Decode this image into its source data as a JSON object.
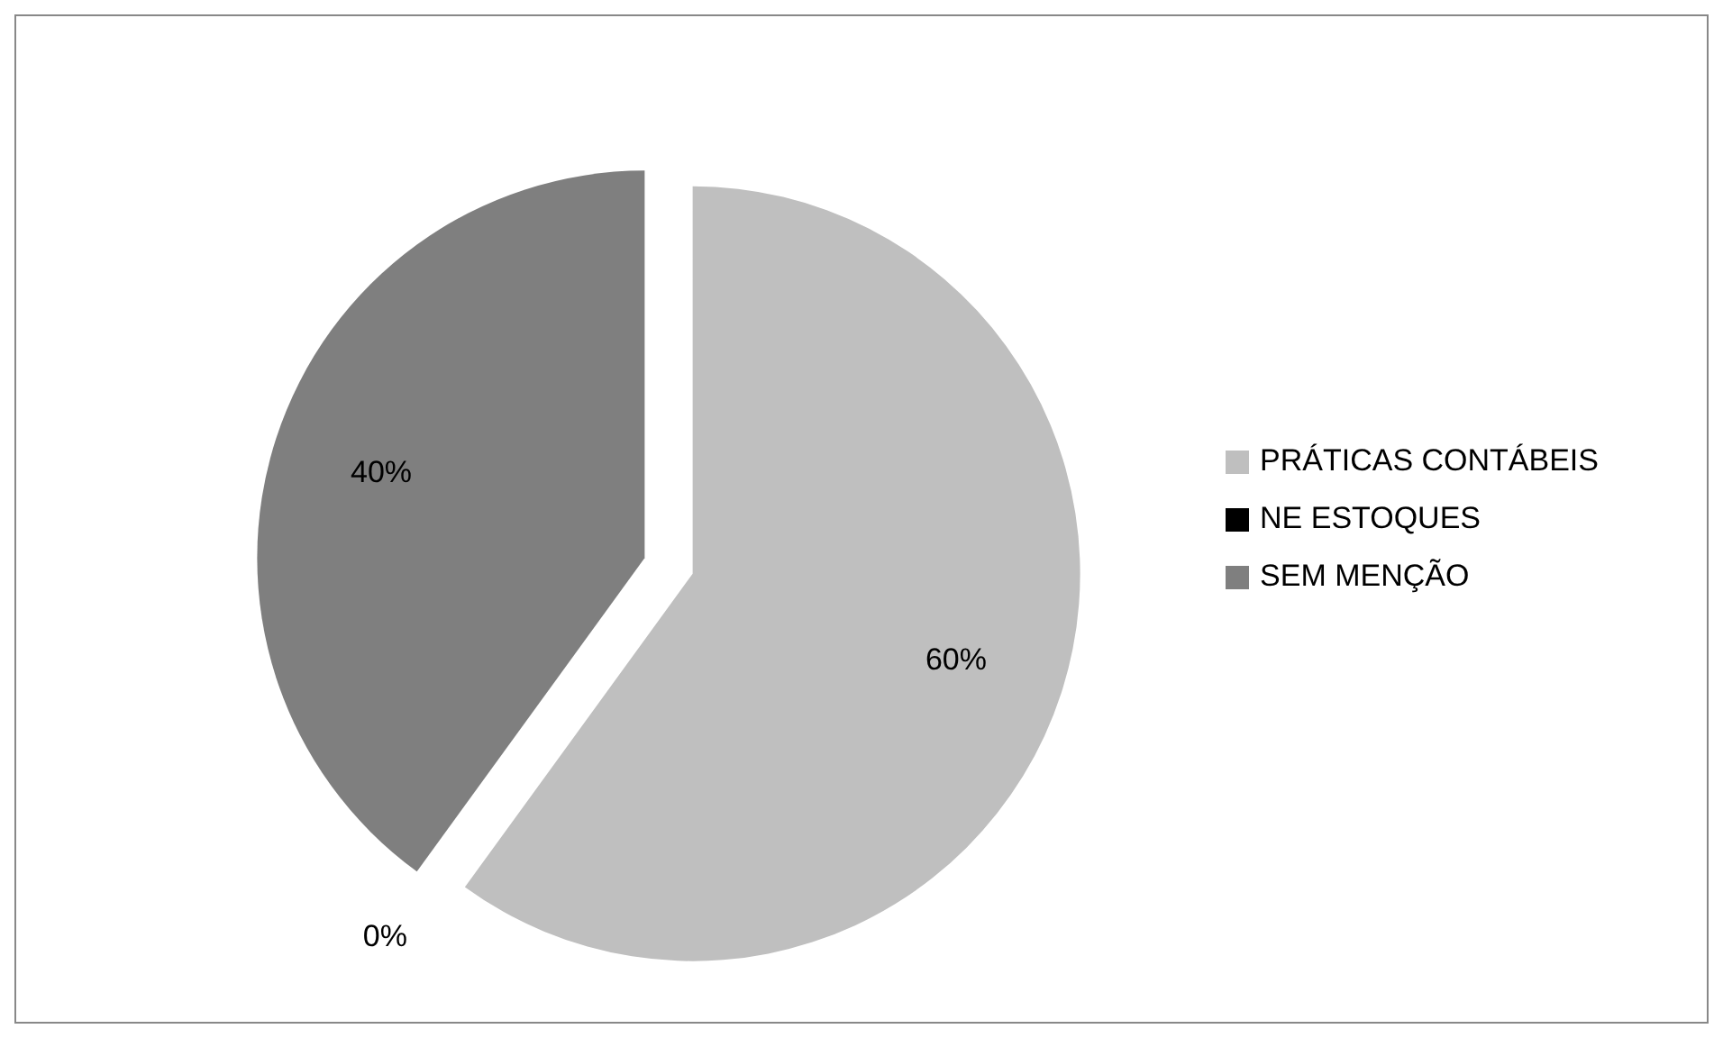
{
  "chart_data": {
    "type": "pie",
    "categories": [
      "PRÁTICAS CONTÁBEIS",
      "NE ESTOQUES",
      "SEM MENÇÃO"
    ],
    "values": [
      60,
      0,
      40
    ],
    "colors": [
      "#bfbfbf",
      "#000000",
      "#7f7f7f"
    ],
    "value_labels": [
      "60%",
      "0%",
      "40%"
    ],
    "legend": "right"
  }
}
